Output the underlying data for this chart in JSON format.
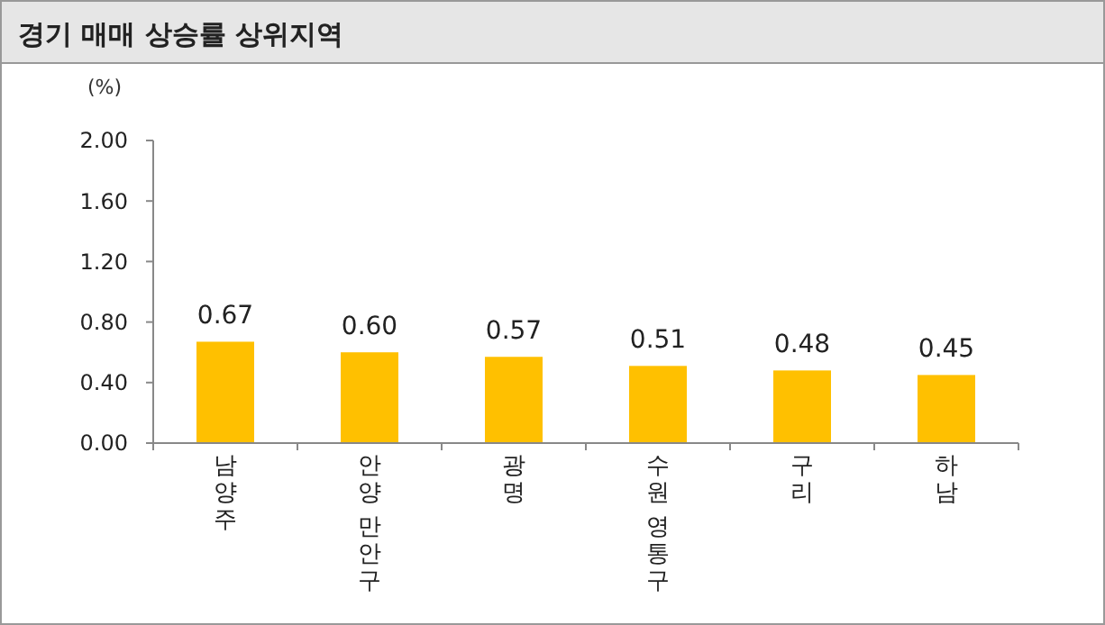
{
  "chart_data": {
    "type": "bar",
    "title": "경기 매매 상승률 상위지역",
    "ylabel": "(%)",
    "categories": [
      "남양주",
      "안양 만안구",
      "광명",
      "수원 영통구",
      "구리",
      "하남"
    ],
    "values": [
      0.67,
      0.6,
      0.57,
      0.51,
      0.48,
      0.45
    ],
    "color": "#ffc000",
    "value_labels": [
      "0.67",
      "0.60",
      "0.57",
      "0.51",
      "0.48",
      "0.45"
    ],
    "ylim": [
      0,
      2
    ],
    "yticks": [
      {
        "value": 0,
        "label": "0.00"
      },
      {
        "value": 0.4,
        "label": "0.40"
      },
      {
        "value": 0.8,
        "label": "0.80"
      },
      {
        "value": 1.2,
        "label": "1.20"
      },
      {
        "value": 1.6,
        "label": "1.60"
      },
      {
        "value": 2,
        "label": "2.00"
      }
    ],
    "grid": false
  }
}
